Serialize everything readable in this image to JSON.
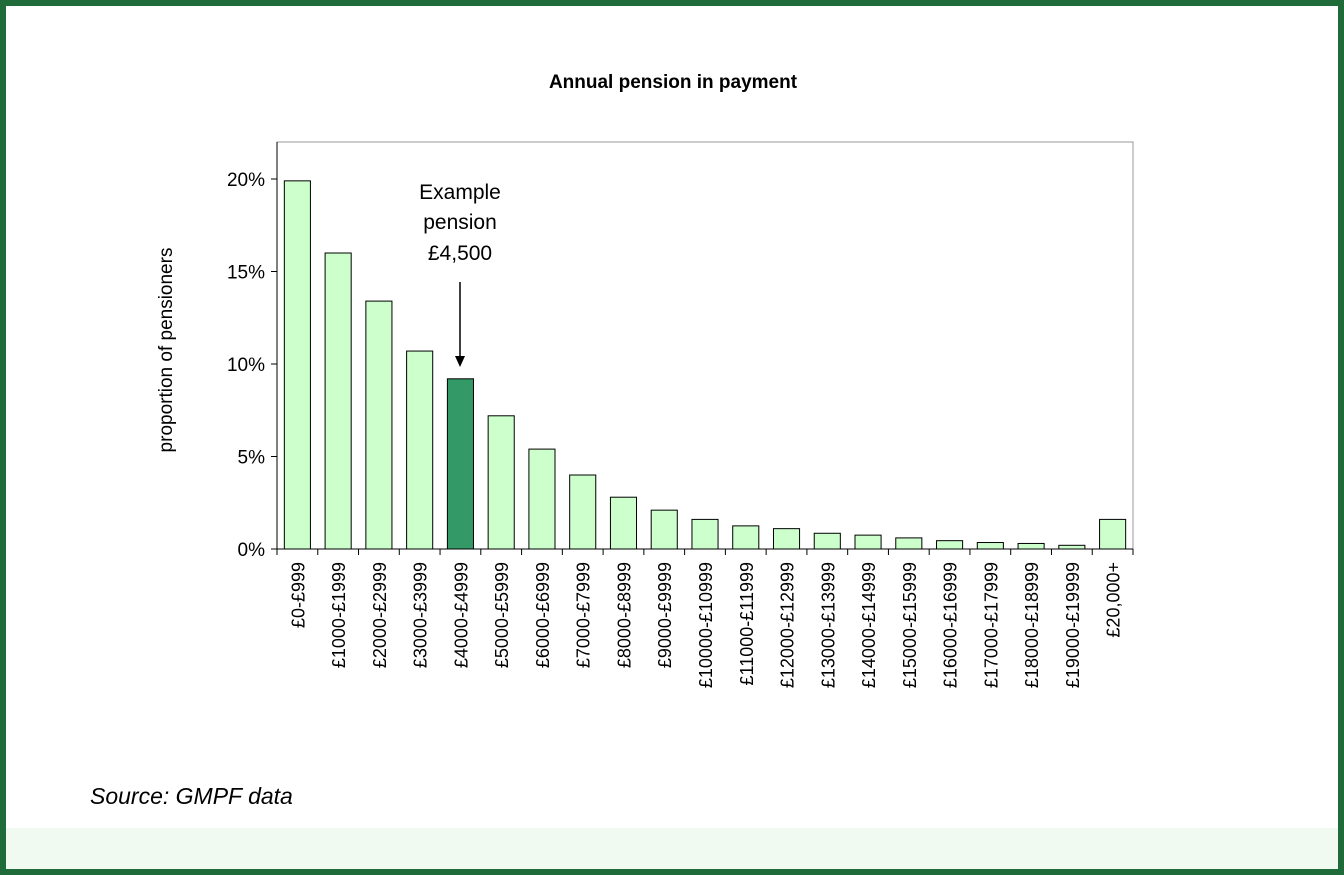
{
  "chart_data": {
    "type": "bar",
    "title": "Annual pension in payment",
    "y_label": "proportion of pensioners",
    "categories": [
      "£0-£999",
      "£1000-£1999",
      "£2000-£2999",
      "£3000-£3999",
      "£4000-£4999",
      "£5000-£5999",
      "£6000-£6999",
      "£7000-£7999",
      "£8000-£8999",
      "£9000-£9999",
      "£10000-£10999",
      "£11000-£11999",
      "£12000-£12999",
      "£13000-£13999",
      "£14000-£14999",
      "£15000-£15999",
      "£16000-£16999",
      "£17000-£17999",
      "£18000-£18999",
      "£19000-£19999",
      "£20,000+"
    ],
    "values": [
      19.9,
      16.0,
      13.4,
      10.7,
      9.2,
      7.2,
      5.4,
      4.0,
      2.8,
      2.1,
      1.6,
      1.25,
      1.1,
      0.85,
      0.75,
      0.6,
      0.45,
      0.35,
      0.3,
      0.2,
      1.6
    ],
    "colors": [
      "#ccffcc",
      "#ccffcc",
      "#ccffcc",
      "#ccffcc",
      "#339966",
      "#ccffcc",
      "#ccffcc",
      "#ccffcc",
      "#ccffcc",
      "#ccffcc",
      "#ccffcc",
      "#ccffcc",
      "#ccffcc",
      "#ccffcc",
      "#ccffcc",
      "#ccffcc",
      "#ccffcc",
      "#ccffcc",
      "#ccffcc",
      "#ccffcc",
      "#ccffcc"
    ],
    "ylim": [
      0,
      22
    ],
    "yticks": [
      {
        "value": 0,
        "label": "0%"
      },
      {
        "value": 5,
        "label": "5%"
      },
      {
        "value": 10,
        "label": "10%"
      },
      {
        "value": 15,
        "label": "15%"
      },
      {
        "value": 20,
        "label": "20%"
      }
    ],
    "annotation": [
      "Example",
      "pension",
      "£4,500"
    ],
    "source": "Source: GMPF data"
  }
}
